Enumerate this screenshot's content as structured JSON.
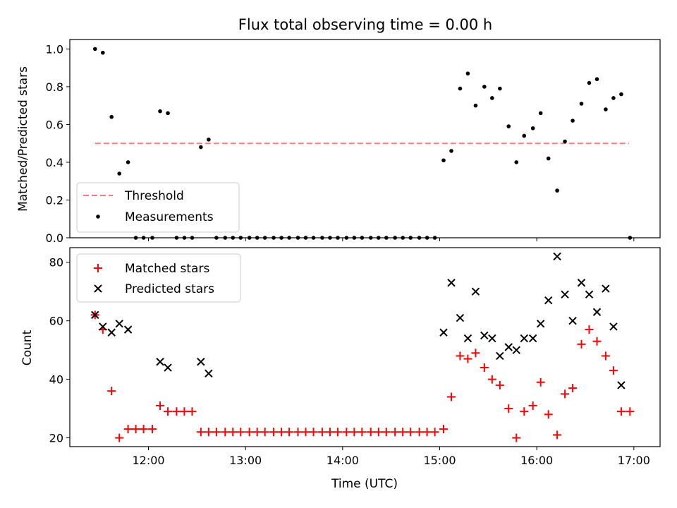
{
  "chart_data": [
    {
      "type": "scatter",
      "title": "Flux total observing time = 0.00 h",
      "xlabel": "",
      "ylabel": "Matched/Predicted stars",
      "ylim": [
        0,
        1.05
      ],
      "yticks": [
        "0.0",
        "0.2",
        "0.4",
        "0.6",
        "0.8",
        "1.0"
      ],
      "ytick_values": [
        0,
        0.2,
        0.4,
        0.6,
        0.8,
        1.0
      ],
      "legend_placement": "lower-left",
      "threshold": {
        "name": "Threshold",
        "y": 0.5,
        "x_start": 11.45,
        "x_end": 16.95,
        "color": "#f08080"
      },
      "series": [
        {
          "name": "Measurements",
          "color": "#000000",
          "marker": "dot",
          "x": [
            11.45,
            11.53,
            11.62,
            11.7,
            11.79,
            11.87,
            11.95,
            12.04,
            12.12,
            12.2,
            12.29,
            12.37,
            12.45,
            12.54,
            12.62,
            12.7,
            12.79,
            12.87,
            12.95,
            13.04,
            13.12,
            13.2,
            13.29,
            13.37,
            13.45,
            13.54,
            13.62,
            13.7,
            13.79,
            13.87,
            13.95,
            14.04,
            14.12,
            14.2,
            14.29,
            14.37,
            14.45,
            14.54,
            14.62,
            14.7,
            14.79,
            14.87,
            14.95,
            15.04,
            15.12,
            15.21,
            15.29,
            15.37,
            15.46,
            15.54,
            15.62,
            15.71,
            15.79,
            15.87,
            15.96,
            16.04,
            16.12,
            16.21,
            16.29,
            16.37,
            16.46,
            16.54,
            16.62,
            16.71,
            16.79,
            16.87,
            16.96
          ],
          "y": [
            1.0,
            0.98,
            0.64,
            0.34,
            0.4,
            0,
            0,
            0,
            0.67,
            0.66,
            0,
            0,
            0,
            0.48,
            0.52,
            0,
            0,
            0,
            0,
            0,
            0,
            0,
            0,
            0,
            0,
            0,
            0,
            0,
            0,
            0,
            0,
            0,
            0,
            0,
            0,
            0,
            0,
            0,
            0,
            0,
            0,
            0,
            0,
            0.41,
            0.46,
            0.79,
            0.87,
            0.7,
            0.8,
            0.74,
            0.79,
            0.59,
            0.4,
            0.54,
            0.58,
            0.66,
            0.42,
            0.25,
            0.51,
            0.62,
            0.71,
            0.82,
            0.84,
            0.68,
            0.74,
            0.76,
            0
          ]
        }
      ]
    },
    {
      "type": "scatter",
      "title": "",
      "xlabel": "Time (UTC)",
      "ylabel": "Count",
      "ylim": [
        17,
        85
      ],
      "yticks": [
        "20",
        "40",
        "60",
        "80"
      ],
      "ytick_values": [
        20,
        40,
        60,
        80
      ],
      "xlim": [
        11.19,
        17.27
      ],
      "xticks": [
        "12:00",
        "13:00",
        "14:00",
        "15:00",
        "16:00",
        "17:00"
      ],
      "xtick_values": [
        12,
        13,
        14,
        15,
        16,
        17
      ],
      "legend_placement": "top-left",
      "series": [
        {
          "name": "Matched stars",
          "color": "#ff0000",
          "marker": "plus",
          "x": [
            11.45,
            11.53,
            11.62,
            11.7,
            11.79,
            11.87,
            11.95,
            12.04,
            12.12,
            12.2,
            12.29,
            12.37,
            12.45,
            12.54,
            12.62,
            12.7,
            12.79,
            12.87,
            12.95,
            13.04,
            13.12,
            13.2,
            13.29,
            13.37,
            13.45,
            13.54,
            13.62,
            13.7,
            13.79,
            13.87,
            13.95,
            14.04,
            14.12,
            14.2,
            14.29,
            14.37,
            14.45,
            14.54,
            14.62,
            14.7,
            14.79,
            14.87,
            14.95,
            15.04,
            15.12,
            15.21,
            15.29,
            15.37,
            15.46,
            15.54,
            15.62,
            15.71,
            15.79,
            15.87,
            15.96,
            16.04,
            16.12,
            16.21,
            16.29,
            16.37,
            16.46,
            16.54,
            16.62,
            16.71,
            16.79,
            16.87,
            16.96
          ],
          "y": [
            62,
            57,
            36,
            20,
            23,
            23,
            23,
            23,
            31,
            29,
            29,
            29,
            29,
            22,
            22,
            22,
            22,
            22,
            22,
            22,
            22,
            22,
            22,
            22,
            22,
            22,
            22,
            22,
            22,
            22,
            22,
            22,
            22,
            22,
            22,
            22,
            22,
            22,
            22,
            22,
            22,
            22,
            22,
            23,
            34,
            48,
            47,
            49,
            44,
            40,
            38,
            30,
            20,
            29,
            31,
            39,
            28,
            21,
            35,
            37,
            52,
            57,
            53,
            48,
            43,
            29,
            29
          ]
        },
        {
          "name": "Predicted stars",
          "color": "#000000",
          "marker": "x",
          "x": [
            11.45,
            11.53,
            11.62,
            11.7,
            11.79,
            12.12,
            12.2,
            12.54,
            12.62,
            15.04,
            15.12,
            15.21,
            15.29,
            15.37,
            15.46,
            15.54,
            15.62,
            15.71,
            15.79,
            15.87,
            15.96,
            16.04,
            16.12,
            16.21,
            16.29,
            16.37,
            16.46,
            16.54,
            16.62,
            16.71,
            16.79,
            16.87
          ],
          "y": [
            62,
            58,
            56,
            59,
            57,
            46,
            44,
            46,
            42,
            56,
            73,
            61,
            54,
            70,
            55,
            54,
            48,
            51,
            50,
            54,
            54,
            59,
            67,
            82,
            69,
            60,
            73,
            69,
            63,
            71,
            58,
            38
          ]
        }
      ]
    }
  ]
}
